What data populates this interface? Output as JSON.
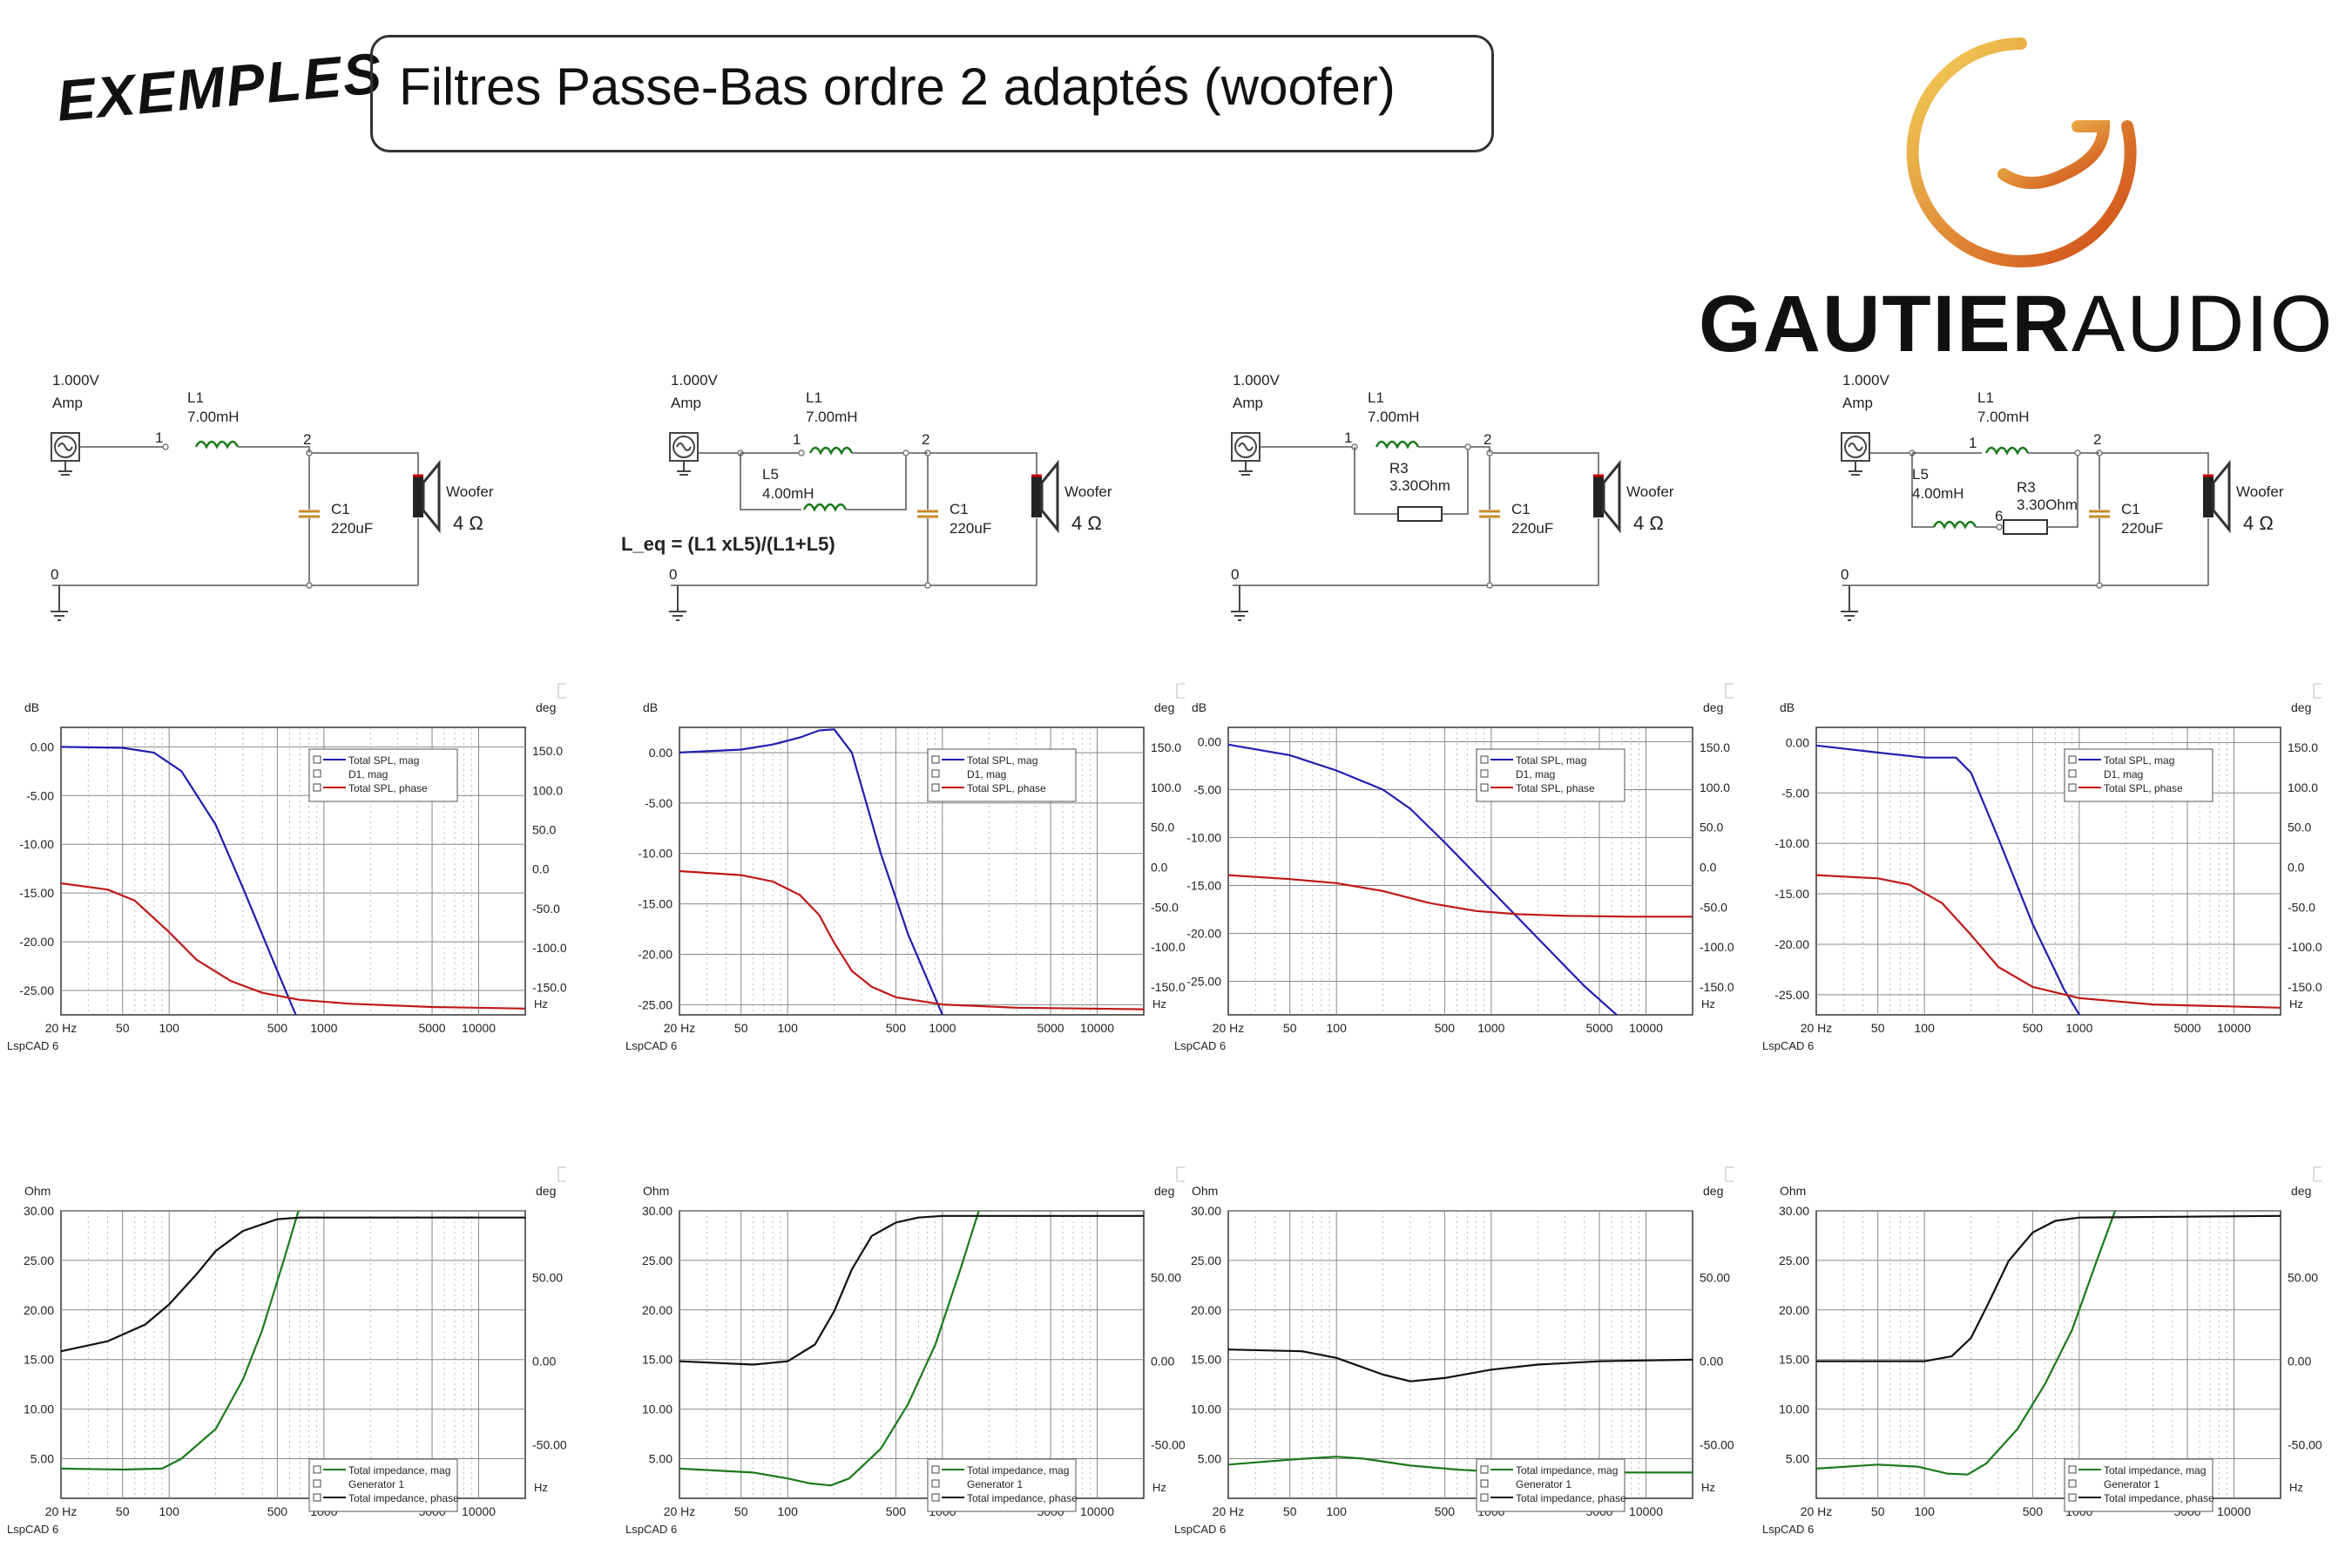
{
  "header": {
    "exemples": "EXEMPLES",
    "title": "Filtres Passe-Bas ordre 2 adaptés (woofer)",
    "brand_bold": "GAUTIER",
    "brand_light": "AUDIO"
  },
  "colors": {
    "mag": "#1f1fb0",
    "phase": "#c01818",
    "impedance": "#1a7a1a",
    "imp_phase": "#111111",
    "logo_start": "#f0c34a",
    "logo_end": "#d4521a"
  },
  "common": {
    "source_voltage": "1.000V",
    "source_label": "Amp",
    "woofer_label": "Woofer",
    "woofer_ohm": "4 Ω",
    "c1_name": "C1",
    "c1_value": "220uF",
    "l1_name": "L1",
    "l1_value": "7.00mH",
    "l5_name": "L5",
    "l5_value": "4.00mH",
    "r3_name": "R3",
    "r3_value": "3.30Ohm",
    "node0": "0",
    "node1": "1",
    "node2": "2",
    "node6": "6",
    "formula": "L_eq = (L1 xL5)/(L1+L5)",
    "spl_unit": "dB",
    "imp_unit": "Ohm",
    "deg_unit": "deg",
    "hz_unit": "Hz",
    "watermark": "LspCAD 6",
    "spl_legend": [
      "Total SPL, mag",
      "D1, mag",
      "Total SPL, phase"
    ],
    "imp_legend": [
      "Total impedance, mag",
      "Generator 1",
      "Total impedance, phase"
    ],
    "x_ticks": [
      "20 Hz",
      "50",
      "100",
      "500",
      "1000",
      "5000",
      "10000"
    ]
  },
  "chart_data": [
    {
      "type": "line",
      "id": "spl-1",
      "ylabel": "dB",
      "y2label": "deg",
      "xlabel": "Hz",
      "x_scale": "log",
      "xlim": [
        20,
        20000
      ],
      "ylim": [
        -27.5,
        2
      ],
      "y2lim": [
        -185,
        180
      ],
      "y_ticks": [
        "0.00",
        "-5.00",
        "-10.00",
        "-15.00",
        "-20.00",
        "-25.00"
      ],
      "y2_ticks": [
        "150.0",
        "100.0",
        "50.0",
        "0.0",
        "-50.0",
        "-100.0",
        "-150.0"
      ],
      "legend": [
        "Total SPL, mag",
        "D1, mag",
        "Total SPL, phase"
      ],
      "series": [
        {
          "name": "Total SPL, mag",
          "axis": "left",
          "x": [
            20,
            50,
            80,
            120,
            200,
            300,
            500,
            700
          ],
          "y": [
            0,
            -0.1,
            -0.6,
            -2.5,
            -8,
            -14.5,
            -23,
            -28.5
          ]
        },
        {
          "name": "Total SPL, phase",
          "axis": "right",
          "x": [
            20,
            40,
            60,
            100,
            150,
            250,
            400,
            700,
            1500,
            5000,
            20000
          ],
          "y": [
            -18,
            -26,
            -40,
            -80,
            -115,
            -142,
            -157,
            -166,
            -171,
            -175,
            -177
          ]
        }
      ]
    },
    {
      "type": "line",
      "id": "spl-2",
      "ylabel": "dB",
      "y2label": "deg",
      "xlabel": "Hz",
      "x_scale": "log",
      "xlim": [
        20,
        20000
      ],
      "ylim": [
        -26,
        2.5
      ],
      "y2lim": [
        -185,
        175
      ],
      "y_ticks": [
        "0.00",
        "-5.00",
        "-10.00",
        "-15.00",
        "-20.00",
        "-25.00"
      ],
      "y2_ticks": [
        "150.0",
        "100.0",
        "50.0",
        "0.0",
        "-50.0",
        "-100.0",
        "-150.0"
      ],
      "legend": [
        "Total SPL, mag",
        "D1, mag",
        "Total SPL, phase"
      ],
      "series": [
        {
          "name": "Total SPL, mag",
          "axis": "left",
          "x": [
            20,
            50,
            80,
            120,
            160,
            200,
            260,
            400,
            600,
            1000
          ],
          "y": [
            0,
            0.3,
            0.8,
            1.5,
            2.2,
            2.3,
            0,
            -10,
            -18,
            -26
          ]
        },
        {
          "name": "Total SPL, phase",
          "axis": "right",
          "x": [
            20,
            50,
            80,
            120,
            160,
            200,
            260,
            350,
            500,
            1000,
            3000,
            20000
          ],
          "y": [
            -5,
            -10,
            -18,
            -35,
            -60,
            -95,
            -130,
            -150,
            -163,
            -172,
            -176,
            -178
          ]
        }
      ]
    },
    {
      "type": "line",
      "id": "spl-3",
      "ylabel": "dB",
      "y2label": "deg",
      "xlabel": "Hz",
      "x_scale": "log",
      "xlim": [
        20,
        20000
      ],
      "ylim": [
        -28.5,
        1.5
      ],
      "y2lim": [
        -185,
        175
      ],
      "y_ticks": [
        "0.00",
        "-5.00",
        "-10.00",
        "-15.00",
        "-20.00",
        "-25.00"
      ],
      "y2_ticks": [
        "150.0",
        "100.0",
        "50.0",
        "0.0",
        "-50.0",
        "-100.0",
        "-150.0"
      ],
      "legend": [
        "Total SPL, mag",
        "D1, mag",
        "Total SPL, phase"
      ],
      "series": [
        {
          "name": "Total SPL, mag",
          "axis": "left",
          "x": [
            20,
            50,
            100,
            200,
            300,
            500,
            1000,
            2000,
            4000,
            7000
          ],
          "y": [
            -0.3,
            -1.4,
            -3,
            -5,
            -7,
            -10.5,
            -15.5,
            -20.5,
            -25.5,
            -29
          ]
        },
        {
          "name": "Total SPL, phase",
          "axis": "right",
          "x": [
            20,
            50,
            100,
            200,
            400,
            800,
            1500,
            3000,
            8000,
            20000
          ],
          "y": [
            -10,
            -15,
            -20,
            -30,
            -45,
            -55,
            -59,
            -61,
            -62,
            -62
          ]
        }
      ]
    },
    {
      "type": "line",
      "id": "spl-4",
      "ylabel": "dB",
      "y2label": "deg",
      "xlabel": "Hz",
      "x_scale": "log",
      "xlim": [
        20,
        20000
      ],
      "ylim": [
        -27,
        1.5
      ],
      "y2lim": [
        -185,
        175
      ],
      "y_ticks": [
        "0.00",
        "-5.00",
        "-10.00",
        "-15.00",
        "-20.00",
        "-25.00"
      ],
      "y2_ticks": [
        "150.0",
        "100.0",
        "50.0",
        "0.0",
        "-50.0",
        "-100.0",
        "-150.0"
      ],
      "legend": [
        "Total SPL, mag",
        "D1, mag",
        "Total SPL, phase"
      ],
      "series": [
        {
          "name": "Total SPL, mag",
          "axis": "left",
          "x": [
            20,
            50,
            100,
            160,
            200,
            300,
            500,
            800,
            1100
          ],
          "y": [
            -0.3,
            -1,
            -1.5,
            -1.5,
            -3,
            -9.5,
            -18,
            -24.5,
            -28
          ]
        },
        {
          "name": "Total SPL, phase",
          "axis": "right",
          "x": [
            20,
            50,
            80,
            130,
            200,
            300,
            500,
            1000,
            3000,
            20000
          ],
          "y": [
            -10,
            -14,
            -22,
            -45,
            -85,
            -125,
            -150,
            -164,
            -172,
            -176
          ]
        }
      ]
    },
    {
      "type": "line",
      "id": "imp-1",
      "ylabel": "Ohm",
      "y2label": "deg",
      "xlabel": "Hz",
      "x_scale": "log",
      "xlim": [
        20,
        20000
      ],
      "ylim": [
        1,
        30
      ],
      "y2lim": [
        -82,
        90
      ],
      "y_ticks": [
        "30.00",
        "25.00",
        "20.00",
        "15.00",
        "10.00",
        "5.00"
      ],
      "y2_ticks": [
        "50.00",
        "0.00",
        "-50.00"
      ],
      "legend": [
        "Total impedance, mag",
        "Generator 1",
        "Total impedance, phase"
      ],
      "series": [
        {
          "name": "Total impedance, mag",
          "axis": "left",
          "x": [
            20,
            50,
            90,
            120,
            200,
            300,
            400,
            550,
            700
          ],
          "y": [
            4,
            3.9,
            4,
            5,
            8,
            13,
            18,
            25,
            30.5
          ]
        },
        {
          "name": "Total impedance, phase",
          "axis": "right",
          "x": [
            20,
            40,
            70,
            100,
            150,
            200,
            300,
            500,
            700,
            2000,
            20000
          ],
          "y": [
            6,
            12,
            22,
            34,
            52,
            66,
            78,
            85,
            86,
            86,
            86
          ]
        }
      ]
    },
    {
      "type": "line",
      "id": "imp-2",
      "ylabel": "Ohm",
      "y2label": "deg",
      "xlabel": "Hz",
      "x_scale": "log",
      "xlim": [
        20,
        20000
      ],
      "ylim": [
        1,
        30
      ],
      "y2lim": [
        -82,
        90
      ],
      "y_ticks": [
        "30.00",
        "25.00",
        "20.00",
        "15.00",
        "10.00",
        "5.00"
      ],
      "y2_ticks": [
        "50.00",
        "0.00",
        "-50.00"
      ],
      "legend": [
        "Total impedance, mag",
        "Generator 1",
        "Total impedance, phase"
      ],
      "series": [
        {
          "name": "Total impedance, mag",
          "axis": "left",
          "x": [
            20,
            60,
            100,
            140,
            190,
            250,
            400,
            600,
            900,
            1300,
            1800
          ],
          "y": [
            4,
            3.6,
            3,
            2.5,
            2.3,
            3,
            6,
            10.5,
            16.5,
            24,
            31
          ]
        },
        {
          "name": "Total impedance, phase",
          "axis": "right",
          "x": [
            20,
            60,
            100,
            150,
            200,
            260,
            350,
            500,
            700,
            1000,
            20000
          ],
          "y": [
            0,
            -2,
            0,
            10,
            30,
            55,
            75,
            83,
            86,
            87,
            87
          ]
        }
      ]
    },
    {
      "type": "line",
      "id": "imp-3",
      "ylabel": "Ohm",
      "y2label": "deg",
      "xlabel": "Hz",
      "x_scale": "log",
      "xlim": [
        20,
        20000
      ],
      "ylim": [
        1,
        30
      ],
      "y2lim": [
        -82,
        90
      ],
      "y_ticks": [
        "30.00",
        "25.00",
        "20.00",
        "15.00",
        "10.00",
        "5.00"
      ],
      "y2_ticks": [
        "50.00",
        "0.00",
        "-50.00"
      ],
      "legend": [
        "Total impedance, mag",
        "Generator 1",
        "Total impedance, phase"
      ],
      "series": [
        {
          "name": "Total impedance, mag",
          "axis": "left",
          "x": [
            20,
            50,
            100,
            150,
            300,
            600,
            1000,
            2000,
            5000,
            20000
          ],
          "y": [
            4.4,
            4.9,
            5.2,
            5,
            4.3,
            3.9,
            3.7,
            3.6,
            3.6,
            3.6
          ]
        },
        {
          "name": "Total impedance, phase",
          "axis": "right",
          "x": [
            20,
            60,
            100,
            200,
            300,
            500,
            1000,
            2000,
            5000,
            20000
          ],
          "y": [
            7,
            6,
            2,
            -8,
            -12,
            -10,
            -5,
            -2,
            0,
            1
          ]
        }
      ]
    },
    {
      "type": "line",
      "id": "imp-4",
      "ylabel": "Ohm",
      "y2label": "deg",
      "xlabel": "Hz",
      "x_scale": "log",
      "xlim": [
        20,
        20000
      ],
      "ylim": [
        1,
        30
      ],
      "y2lim": [
        -82,
        90
      ],
      "y_ticks": [
        "30.00",
        "25.00",
        "20.00",
        "15.00",
        "10.00",
        "5.00"
      ],
      "y2_ticks": [
        "50.00",
        "0.00",
        "-50.00"
      ],
      "legend": [
        "Total impedance, mag",
        "Generator 1",
        "Total impedance, phase"
      ],
      "series": [
        {
          "name": "Total impedance, mag",
          "axis": "left",
          "x": [
            20,
            50,
            90,
            140,
            190,
            250,
            400,
            600,
            900,
            1300,
            1800
          ],
          "y": [
            4,
            4.4,
            4.2,
            3.5,
            3.4,
            4.5,
            8,
            12.5,
            18,
            25,
            31
          ]
        },
        {
          "name": "Total impedance, phase",
          "axis": "right",
          "x": [
            20,
            60,
            100,
            150,
            200,
            260,
            350,
            500,
            700,
            1000,
            20000
          ],
          "y": [
            0,
            0,
            0,
            3,
            14,
            35,
            60,
            77,
            84,
            86,
            87
          ]
        }
      ]
    }
  ]
}
